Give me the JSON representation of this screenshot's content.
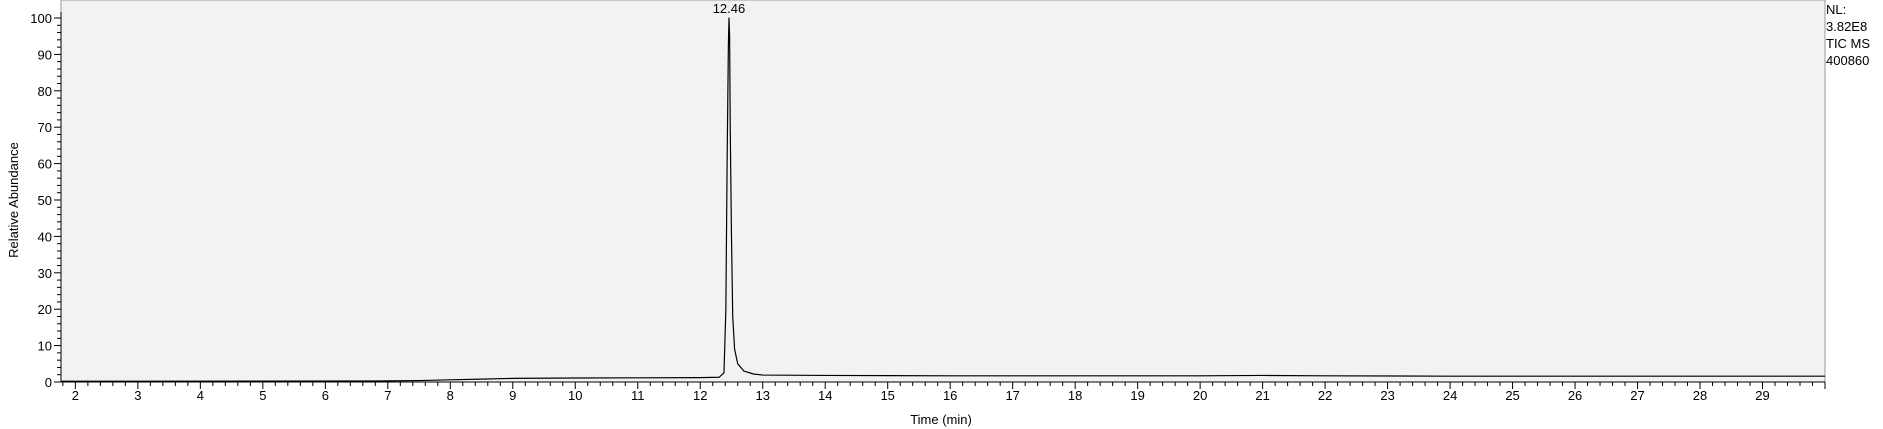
{
  "chart_data": {
    "type": "line",
    "xlabel": "Time (min)",
    "ylabel": "Relative Abundance",
    "xlim": [
      1.77,
      30.0
    ],
    "ylim": [
      0,
      100
    ],
    "x_ticks": [
      2,
      3,
      4,
      5,
      6,
      7,
      8,
      9,
      10,
      11,
      12,
      13,
      14,
      15,
      16,
      17,
      18,
      19,
      20,
      21,
      22,
      23,
      24,
      25,
      26,
      27,
      28,
      29
    ],
    "y_ticks": [
      0,
      10,
      20,
      30,
      40,
      50,
      60,
      70,
      80,
      90,
      100
    ],
    "peak_labels": [
      {
        "x": 12.46,
        "y": 100,
        "text": "12.46"
      }
    ],
    "series": [
      {
        "color": "#000000",
        "points": [
          [
            1.77,
            0.2
          ],
          [
            3,
            0.2
          ],
          [
            5,
            0.25
          ],
          [
            7,
            0.3
          ],
          [
            7.5,
            0.4
          ],
          [
            8,
            0.6
          ],
          [
            8.5,
            0.8
          ],
          [
            9,
            1.0
          ],
          [
            10,
            1.1
          ],
          [
            11,
            1.15
          ],
          [
            12,
            1.2
          ],
          [
            12.3,
            1.3
          ],
          [
            12.38,
            2.5
          ],
          [
            12.41,
            20
          ],
          [
            12.43,
            60
          ],
          [
            12.45,
            92
          ],
          [
            12.46,
            100
          ],
          [
            12.47,
            95
          ],
          [
            12.48,
            70
          ],
          [
            12.5,
            40
          ],
          [
            12.52,
            18
          ],
          [
            12.55,
            9
          ],
          [
            12.6,
            5
          ],
          [
            12.7,
            3
          ],
          [
            12.85,
            2.2
          ],
          [
            13,
            1.9
          ],
          [
            14,
            1.8
          ],
          [
            16,
            1.7
          ],
          [
            18,
            1.7
          ],
          [
            20,
            1.7
          ],
          [
            21,
            1.8
          ],
          [
            22,
            1.7
          ],
          [
            24,
            1.6
          ],
          [
            26,
            1.6
          ],
          [
            28,
            1.6
          ],
          [
            30,
            1.6
          ]
        ]
      }
    ]
  },
  "info_panel": {
    "line1": "NL:",
    "line2": "3.82E8",
    "line3": "TIC  MS",
    "line4": "400860"
  }
}
